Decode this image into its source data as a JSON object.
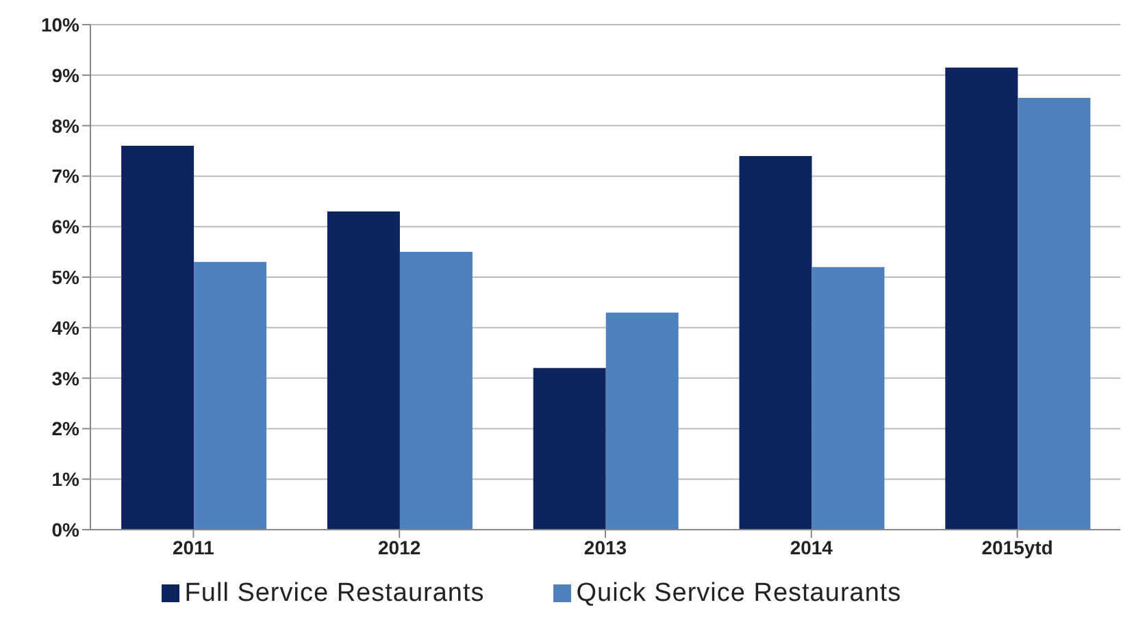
{
  "chart_data": {
    "type": "bar",
    "categories": [
      "2011",
      "2012",
      "2013",
      "2014",
      "2015ytd"
    ],
    "series": [
      {
        "name": "Full Service Restaurants",
        "color": "#0d2461",
        "values": [
          7.6,
          6.3,
          3.2,
          7.4,
          9.15
        ]
      },
      {
        "name": "Quick Service Restaurants",
        "color": "#4f81bd",
        "values": [
          5.3,
          5.5,
          4.3,
          5.2,
          8.55
        ]
      }
    ],
    "ylim": [
      0,
      10
    ],
    "yticks": [
      {
        "value": 0,
        "label": "0%"
      },
      {
        "value": 1,
        "label": "1%"
      },
      {
        "value": 2,
        "label": "2%"
      },
      {
        "value": 3,
        "label": "3%"
      },
      {
        "value": 4,
        "label": "4%"
      },
      {
        "value": 5,
        "label": "5%"
      },
      {
        "value": 6,
        "label": "6%"
      },
      {
        "value": 7,
        "label": "7%"
      },
      {
        "value": 8,
        "label": "8%"
      },
      {
        "value": 9,
        "label": "9%"
      },
      {
        "value": 10,
        "label": "10%"
      }
    ],
    "grid": "y",
    "legend": "bottom"
  }
}
